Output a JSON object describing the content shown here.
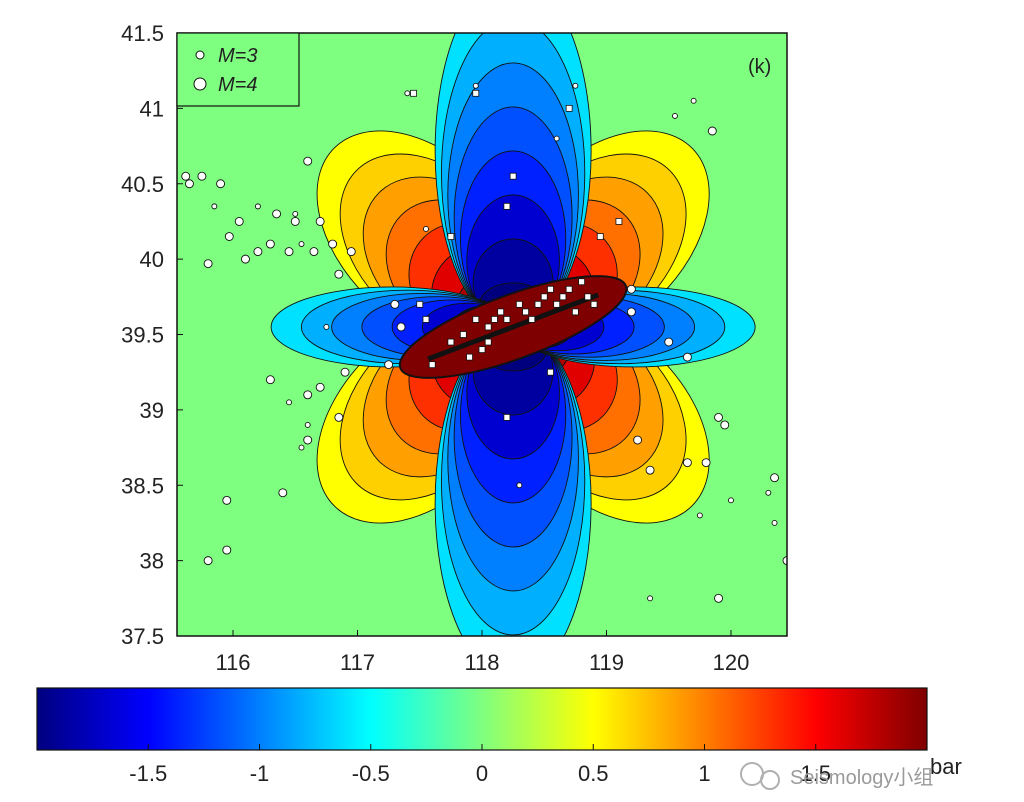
{
  "chart_data": {
    "type": "heatmap",
    "panel_label": "(k)",
    "x_ticks": [
      "116",
      "117",
      "118",
      "119",
      "120"
    ],
    "y_ticks": [
      "41.5",
      "41",
      "40.5",
      "40",
      "39.5",
      "39",
      "38.5",
      "38",
      "37.5"
    ],
    "xlim": [
      115.55,
      120.45
    ],
    "ylim": [
      37.5,
      41.5
    ],
    "legend": [
      {
        "symbol": "small-circle",
        "label": "M=3"
      },
      {
        "symbol": "large-circle",
        "label": "M=4"
      }
    ],
    "colorbar": {
      "range": [
        -2,
        2
      ],
      "ticks": [
        "-1.5",
        "-1",
        "-0.5",
        "0",
        "0.5",
        "1",
        "1.5"
      ],
      "unit": "bar",
      "colormap": [
        "#00007f",
        "#0000ff",
        "#007fff",
        "#00ffff",
        "#7fff7f",
        "#ffff00",
        "#ff7f00",
        "#ff0000",
        "#7f0000"
      ]
    },
    "source_fault": {
      "lon": 118.25,
      "lat": 39.55,
      "strike_deg": 20
    },
    "events": [
      {
        "lon": 115.62,
        "lat": 40.55,
        "mag": 4
      },
      {
        "lon": 115.65,
        "lat": 40.5,
        "mag": 4
      },
      {
        "lon": 115.75,
        "lat": 40.55,
        "mag": 4
      },
      {
        "lon": 115.9,
        "lat": 40.5,
        "mag": 4
      },
      {
        "lon": 115.8,
        "lat": 39.97,
        "mag": 4
      },
      {
        "lon": 115.97,
        "lat": 40.15,
        "mag": 4
      },
      {
        "lon": 116.05,
        "lat": 40.25,
        "mag": 4
      },
      {
        "lon": 116.1,
        "lat": 40.0,
        "mag": 4
      },
      {
        "lon": 116.2,
        "lat": 40.05,
        "mag": 4
      },
      {
        "lon": 116.3,
        "lat": 40.1,
        "mag": 4
      },
      {
        "lon": 116.35,
        "lat": 40.3,
        "mag": 4
      },
      {
        "lon": 116.45,
        "lat": 40.05,
        "mag": 4
      },
      {
        "lon": 116.5,
        "lat": 40.25,
        "mag": 4
      },
      {
        "lon": 116.6,
        "lat": 40.65,
        "mag": 4
      },
      {
        "lon": 116.65,
        "lat": 40.05,
        "mag": 4
      },
      {
        "lon": 116.7,
        "lat": 40.25,
        "mag": 4
      },
      {
        "lon": 116.8,
        "lat": 40.1,
        "mag": 4
      },
      {
        "lon": 116.85,
        "lat": 39.9,
        "mag": 4
      },
      {
        "lon": 116.95,
        "lat": 40.05,
        "mag": 4
      },
      {
        "lon": 116.3,
        "lat": 39.2,
        "mag": 4
      },
      {
        "lon": 116.6,
        "lat": 39.1,
        "mag": 4
      },
      {
        "lon": 116.7,
        "lat": 39.15,
        "mag": 4
      },
      {
        "lon": 116.9,
        "lat": 39.25,
        "mag": 4
      },
      {
        "lon": 116.85,
        "lat": 38.95,
        "mag": 4
      },
      {
        "lon": 116.6,
        "lat": 38.8,
        "mag": 4
      },
      {
        "lon": 116.4,
        "lat": 38.45,
        "mag": 4
      },
      {
        "lon": 115.95,
        "lat": 38.4,
        "mag": 4
      },
      {
        "lon": 115.95,
        "lat": 38.07,
        "mag": 4
      },
      {
        "lon": 115.8,
        "lat": 38.0,
        "mag": 4
      },
      {
        "lon": 119.65,
        "lat": 39.35,
        "mag": 4
      },
      {
        "lon": 119.5,
        "lat": 39.45,
        "mag": 4
      },
      {
        "lon": 119.95,
        "lat": 38.9,
        "mag": 4
      },
      {
        "lon": 119.9,
        "lat": 38.95,
        "mag": 4
      },
      {
        "lon": 119.65,
        "lat": 38.65,
        "mag": 4
      },
      {
        "lon": 119.35,
        "lat": 38.6,
        "mag": 4
      },
      {
        "lon": 119.25,
        "lat": 38.8,
        "mag": 4
      },
      {
        "lon": 119.8,
        "lat": 38.65,
        "mag": 4
      },
      {
        "lon": 120.35,
        "lat": 38.55,
        "mag": 4
      },
      {
        "lon": 119.9,
        "lat": 37.75,
        "mag": 4
      },
      {
        "lon": 120.45,
        "lat": 38.0,
        "mag": 4
      },
      {
        "lon": 119.85,
        "lat": 40.85,
        "mag": 4
      },
      {
        "lon": 119.2,
        "lat": 39.8,
        "mag": 4
      },
      {
        "lon": 119.2,
        "lat": 39.65,
        "mag": 4
      },
      {
        "lon": 117.3,
        "lat": 39.7,
        "mag": 4
      },
      {
        "lon": 117.35,
        "lat": 39.55,
        "mag": 4
      },
      {
        "lon": 117.25,
        "lat": 39.3,
        "mag": 4
      },
      {
        "lon": 116.5,
        "lat": 40.3,
        "mag": 3
      },
      {
        "lon": 116.55,
        "lat": 40.1,
        "mag": 3
      },
      {
        "lon": 116.2,
        "lat": 40.35,
        "mag": 3
      },
      {
        "lon": 115.85,
        "lat": 40.35,
        "mag": 3
      },
      {
        "lon": 116.75,
        "lat": 39.55,
        "mag": 3
      },
      {
        "lon": 116.45,
        "lat": 39.05,
        "mag": 3
      },
      {
        "lon": 116.6,
        "lat": 38.9,
        "mag": 3
      },
      {
        "lon": 116.55,
        "lat": 38.75,
        "mag": 3
      },
      {
        "lon": 119.55,
        "lat": 40.95,
        "mag": 3
      },
      {
        "lon": 119.7,
        "lat": 41.05,
        "mag": 3
      },
      {
        "lon": 120.0,
        "lat": 38.4,
        "mag": 3
      },
      {
        "lon": 120.3,
        "lat": 38.45,
        "mag": 3
      },
      {
        "lon": 120.35,
        "lat": 38.25,
        "mag": 3
      },
      {
        "lon": 119.75,
        "lat": 38.3,
        "mag": 3
      },
      {
        "lon": 119.35,
        "lat": 37.75,
        "mag": 3
      },
      {
        "lon": 118.75,
        "lat": 41.15,
        "mag": 3
      },
      {
        "lon": 117.95,
        "lat": 41.15,
        "mag": 3
      },
      {
        "lon": 117.4,
        "lat": 41.1,
        "mag": 3
      },
      {
        "lon": 117.55,
        "lat": 40.2,
        "mag": 3
      },
      {
        "lon": 118.6,
        "lat": 40.8,
        "mag": 3
      },
      {
        "lon": 118.3,
        "lat": 38.5,
        "mag": 3
      }
    ],
    "aftershocks": [
      {
        "lon": 117.95,
        "lat": 39.6
      },
      {
        "lon": 118.05,
        "lat": 39.55
      },
      {
        "lon": 118.1,
        "lat": 39.6
      },
      {
        "lon": 118.15,
        "lat": 39.65
      },
      {
        "lon": 118.2,
        "lat": 39.6
      },
      {
        "lon": 118.3,
        "lat": 39.7
      },
      {
        "lon": 118.35,
        "lat": 39.65
      },
      {
        "lon": 118.45,
        "lat": 39.7
      },
      {
        "lon": 118.5,
        "lat": 39.75
      },
      {
        "lon": 118.55,
        "lat": 39.8
      },
      {
        "lon": 118.6,
        "lat": 39.7
      },
      {
        "lon": 118.65,
        "lat": 39.75
      },
      {
        "lon": 118.7,
        "lat": 39.8
      },
      {
        "lon": 118.8,
        "lat": 39.85
      },
      {
        "lon": 118.85,
        "lat": 39.75
      },
      {
        "lon": 118.9,
        "lat": 39.7
      },
      {
        "lon": 118.75,
        "lat": 39.65
      },
      {
        "lon": 118.4,
        "lat": 39.6
      },
      {
        "lon": 118.0,
        "lat": 39.4
      },
      {
        "lon": 117.9,
        "lat": 39.35
      },
      {
        "lon": 118.05,
        "lat": 39.45
      },
      {
        "lon": 117.85,
        "lat": 39.5
      },
      {
        "lon": 117.75,
        "lat": 39.45
      },
      {
        "lon": 117.6,
        "lat": 39.3
      },
      {
        "lon": 117.5,
        "lat": 39.7
      },
      {
        "lon": 117.55,
        "lat": 39.6
      },
      {
        "lon": 118.2,
        "lat": 38.95
      },
      {
        "lon": 118.55,
        "lat": 39.25
      },
      {
        "lon": 118.95,
        "lat": 40.15
      },
      {
        "lon": 119.1,
        "lat": 40.25
      },
      {
        "lon": 118.25,
        "lat": 40.55
      },
      {
        "lon": 117.45,
        "lat": 41.1
      },
      {
        "lon": 117.95,
        "lat": 41.1
      },
      {
        "lon": 118.7,
        "lat": 41.0
      },
      {
        "lon": 118.2,
        "lat": 40.35
      },
      {
        "lon": 117.75,
        "lat": 40.15
      }
    ]
  },
  "watermark": {
    "text": "Seismology小组"
  }
}
